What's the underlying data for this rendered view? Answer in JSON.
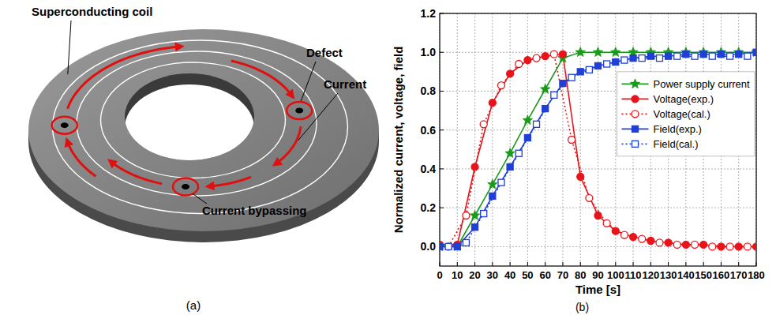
{
  "diagram": {
    "caption": "(a)",
    "labels": [
      "Superconducting coil",
      "Defect",
      "Current",
      "Current bypassing"
    ]
  },
  "chart_data": {
    "type": "line",
    "caption": "(b)",
    "x_label": "Time [s]",
    "y_label": "Normalized current, voltage, field",
    "xlim": [
      0,
      180
    ],
    "ylim": [
      -0.1,
      1.2
    ],
    "xticks": [
      0,
      10,
      20,
      30,
      40,
      50,
      60,
      70,
      80,
      90,
      100,
      110,
      120,
      130,
      140,
      150,
      160,
      170,
      180
    ],
    "yticks": [
      {
        "value": 0,
        "label": "0.0"
      },
      {
        "value": 0.2,
        "label": "0.2"
      },
      {
        "value": 0.4,
        "label": "0.4"
      },
      {
        "value": 0.6,
        "label": "0.6"
      },
      {
        "value": 0.8,
        "label": "0.8"
      },
      {
        "value": 1,
        "label": "1.0"
      },
      {
        "value": 1.2,
        "label": "1.2"
      }
    ],
    "grid": true,
    "legend": "right",
    "series": [
      {
        "name": "Power supply current",
        "color": "#1a9a1a",
        "marker": "star",
        "line_style": "solid",
        "x": [
          0,
          10,
          20,
          30,
          40,
          50,
          60,
          70,
          80,
          90,
          100,
          110,
          120,
          130,
          140,
          150,
          160,
          170,
          180
        ],
        "values": [
          0,
          0,
          0.16,
          0.32,
          0.48,
          0.65,
          0.81,
          0.97,
          1,
          1,
          1,
          1,
          1,
          1,
          1,
          1,
          1,
          1,
          1
        ]
      },
      {
        "name": "Voltage(exp.)",
        "color": "#e8141a",
        "marker": "circle",
        "line_style": "solid",
        "x": [
          0,
          10,
          20,
          30,
          40,
          50,
          60,
          70,
          80,
          90,
          100,
          110,
          120,
          130,
          140,
          150,
          160,
          170,
          180
        ],
        "values": [
          0.01,
          0.01,
          0.41,
          0.74,
          0.89,
          0.96,
          0.98,
          0.99,
          0.36,
          0.16,
          0.08,
          0.05,
          0.03,
          0.02,
          0.01,
          0.01,
          0,
          0,
          0
        ]
      },
      {
        "name": "Voltage(cal.)",
        "color": "#e8141a",
        "marker": "open-circle",
        "line_style": "dotted",
        "x": [
          5,
          15,
          25,
          35,
          45,
          55,
          65,
          75,
          85,
          95,
          105,
          115,
          125,
          135,
          145,
          155,
          165,
          175
        ],
        "values": [
          0,
          0.16,
          0.63,
          0.83,
          0.94,
          0.97,
          0.99,
          0.55,
          0.25,
          0.12,
          0.06,
          0.04,
          0.02,
          0.01,
          0.01,
          0,
          0,
          0
        ]
      },
      {
        "name": "Field(exp.)",
        "color": "#1f3fd6",
        "marker": "square",
        "line_style": "solid",
        "x": [
          0,
          10,
          20,
          30,
          40,
          50,
          60,
          70,
          80,
          90,
          100,
          110,
          120,
          130,
          140,
          150,
          160,
          170,
          180
        ],
        "values": [
          0,
          0,
          0.1,
          0.26,
          0.41,
          0.56,
          0.71,
          0.84,
          0.9,
          0.93,
          0.95,
          0.97,
          0.98,
          0.98,
          0.99,
          0.99,
          0.99,
          0.99,
          1
        ]
      },
      {
        "name": "Field(cal.)",
        "color": "#1f3fd6",
        "marker": "open-square",
        "line_style": "dotted",
        "x": [
          5,
          15,
          25,
          35,
          45,
          55,
          65,
          75,
          85,
          95,
          105,
          115,
          125,
          135,
          145,
          155,
          165,
          175
        ],
        "values": [
          0,
          0.02,
          0.17,
          0.33,
          0.48,
          0.63,
          0.78,
          0.87,
          0.91,
          0.94,
          0.96,
          0.97,
          0.97,
          0.98,
          0.98,
          0.98,
          0.98,
          0.98
        ]
      }
    ]
  }
}
